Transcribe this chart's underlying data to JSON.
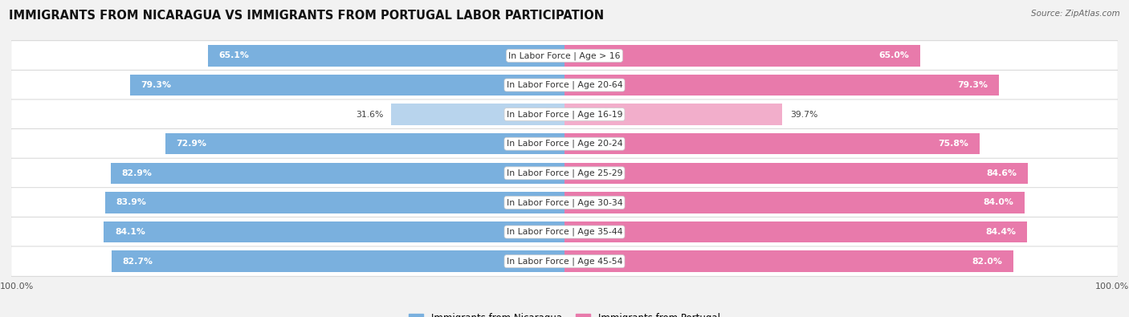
{
  "title": "IMMIGRANTS FROM NICARAGUA VS IMMIGRANTS FROM PORTUGAL LABOR PARTICIPATION",
  "source": "Source: ZipAtlas.com",
  "categories": [
    "In Labor Force | Age > 16",
    "In Labor Force | Age 20-64",
    "In Labor Force | Age 16-19",
    "In Labor Force | Age 20-24",
    "In Labor Force | Age 25-29",
    "In Labor Force | Age 30-34",
    "In Labor Force | Age 35-44",
    "In Labor Force | Age 45-54"
  ],
  "nicaragua_values": [
    65.1,
    79.3,
    31.6,
    72.9,
    82.9,
    83.9,
    84.1,
    82.7
  ],
  "portugal_values": [
    65.0,
    79.3,
    39.7,
    75.8,
    84.6,
    84.0,
    84.4,
    82.0
  ],
  "nicaragua_color": "#7ab0de",
  "portugal_color": "#e87aab",
  "nicaragua_color_light": "#b8d4ed",
  "portugal_color_light": "#f2aecb",
  "bg_color": "#f2f2f2",
  "max_value": 100.0,
  "title_fontsize": 10.5,
  "label_fontsize": 7.8,
  "bar_label_fontsize": 7.8,
  "legend_fontsize": 8.5
}
